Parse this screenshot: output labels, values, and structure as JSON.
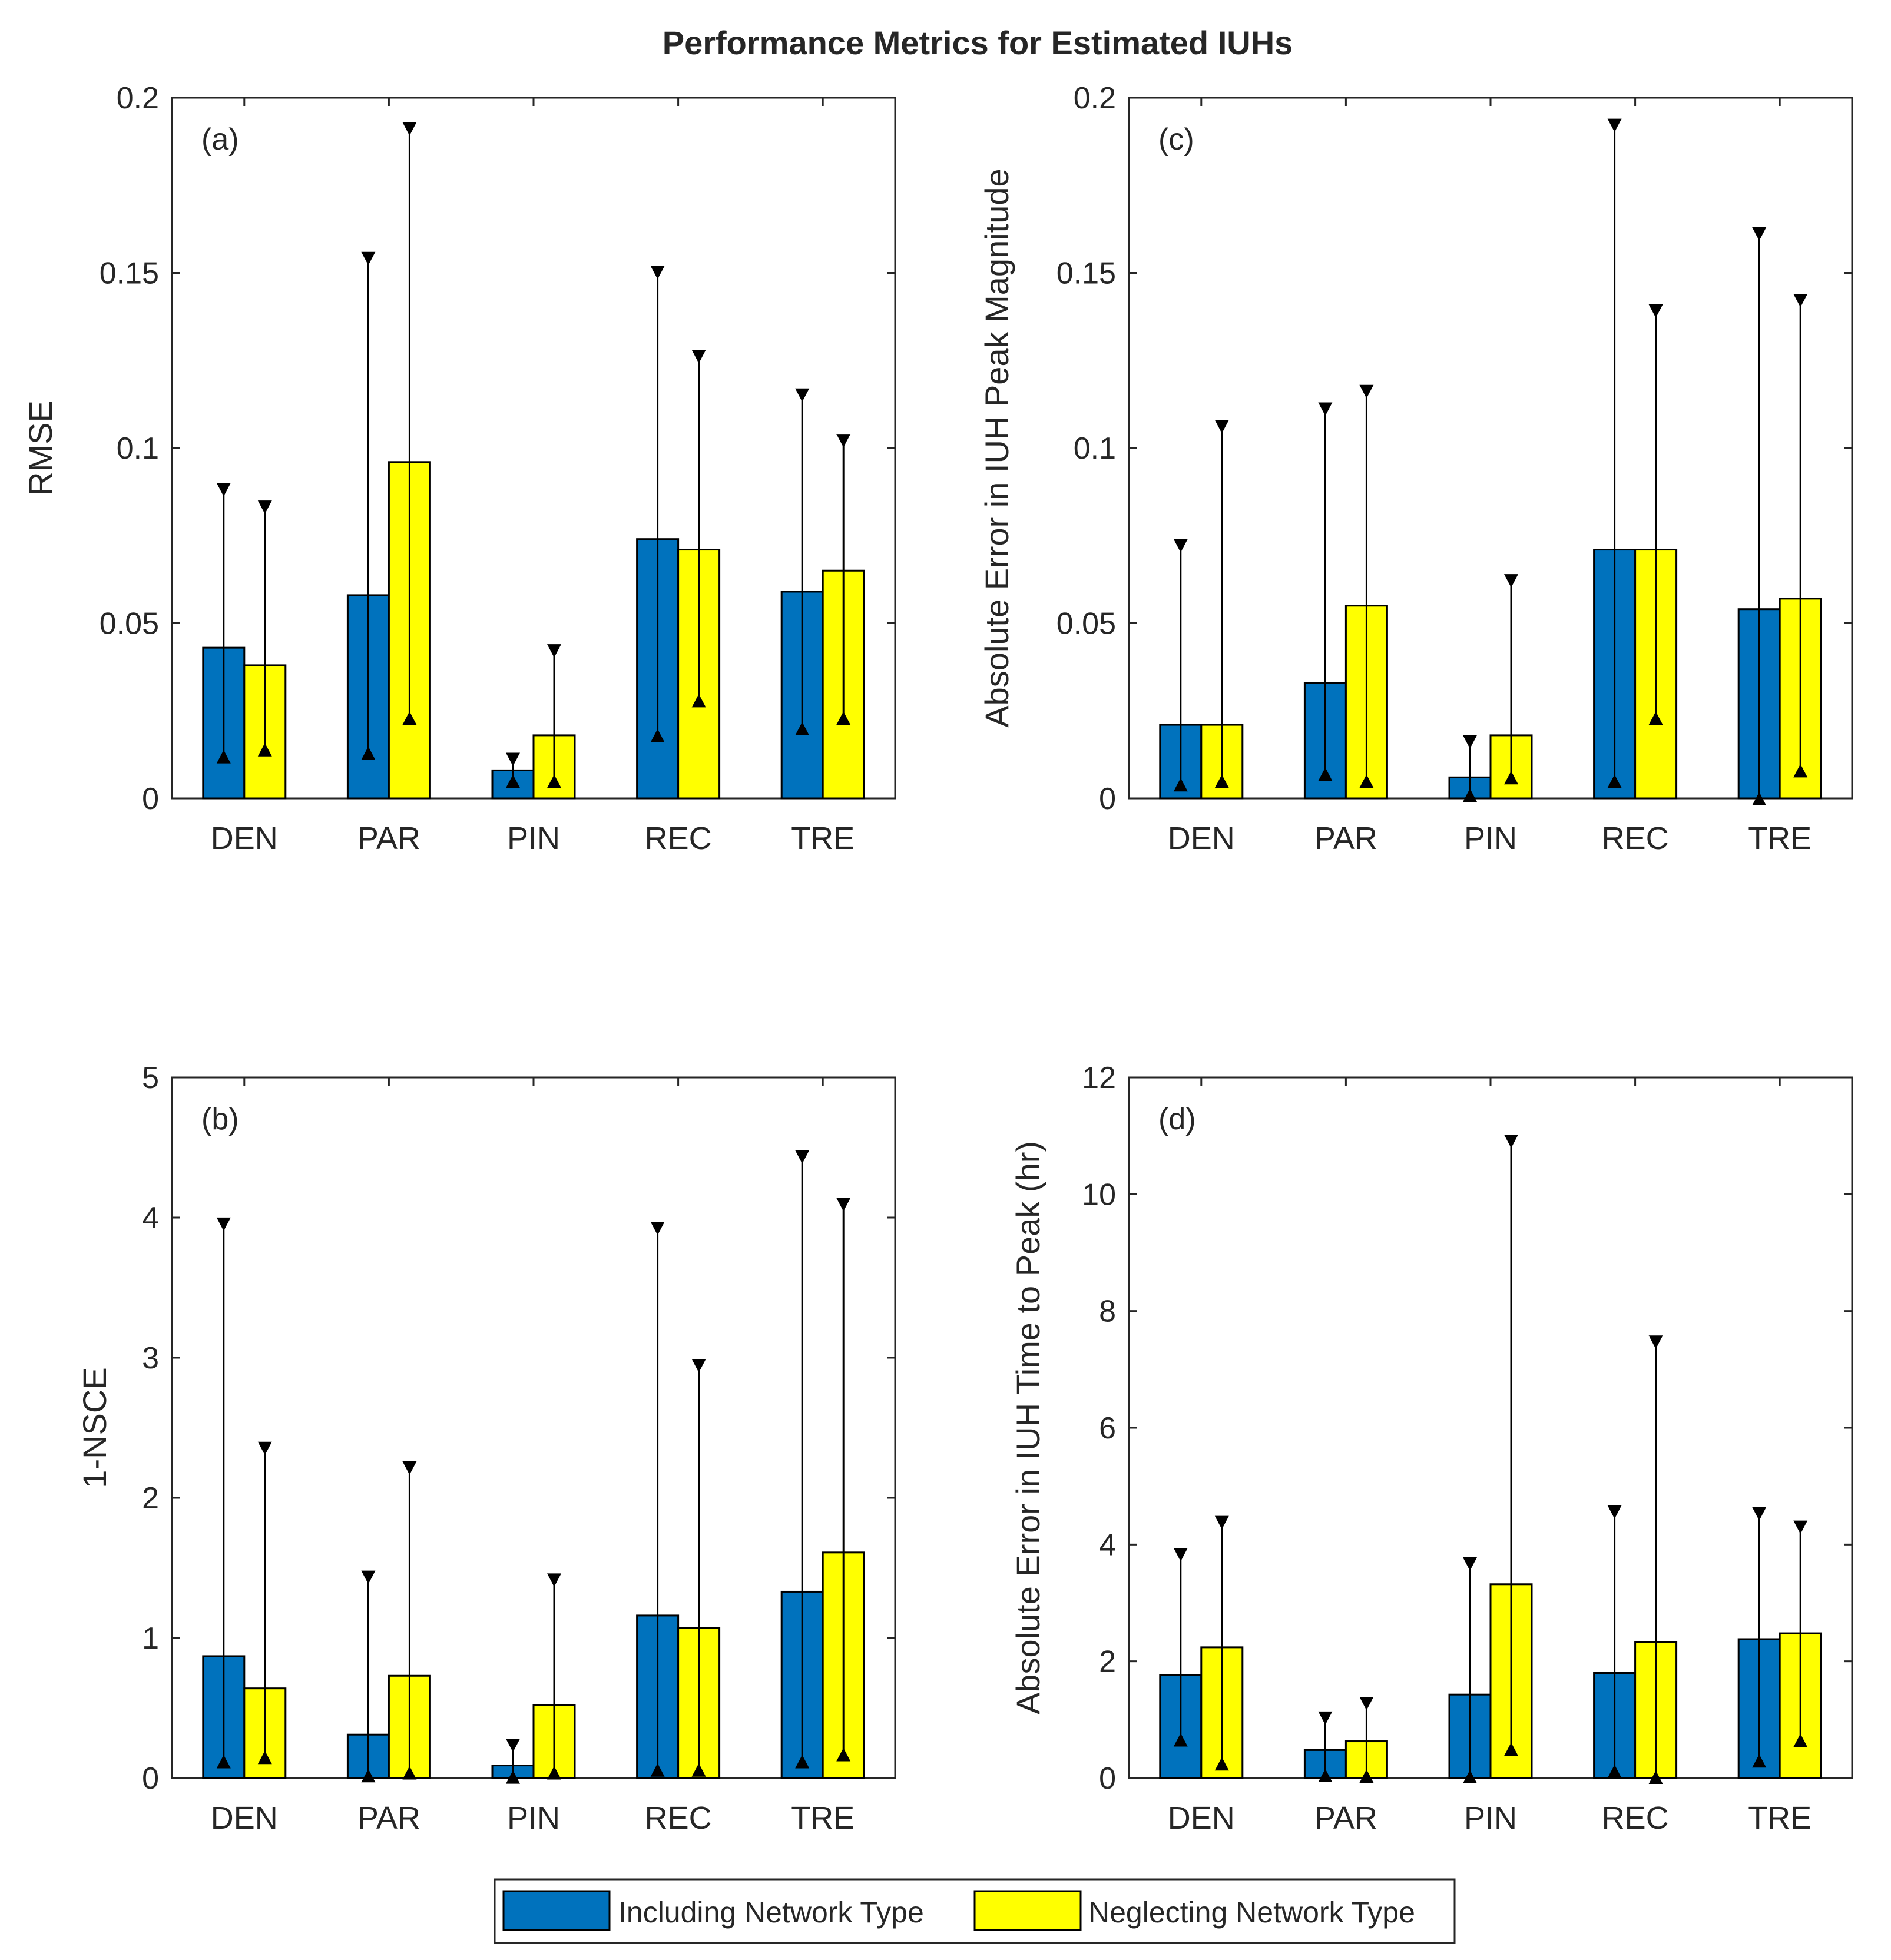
{
  "figure_title": "Performance Metrics for Estimated IUHs",
  "legend": {
    "items": [
      {
        "label": "Including Network Type",
        "color": "#0072BD"
      },
      {
        "label": "Neglecting Network Type",
        "color": "#FFFF00"
      }
    ]
  },
  "chart_data": [
    {
      "id": "a",
      "panel_label": "(a)",
      "type": "bar",
      "ylabel": "RMSE",
      "xlabel": "",
      "ylim": [
        0,
        0.2
      ],
      "yticks": [
        0,
        0.05,
        0.1,
        0.15,
        0.2
      ],
      "ytick_labels": [
        "0",
        "0.05",
        "0.1",
        "0.15",
        "0.2"
      ],
      "categories": [
        "DEN",
        "PAR",
        "PIN",
        "REC",
        "TRE"
      ],
      "series": [
        {
          "name": "Including Network Type",
          "values": [
            0.043,
            0.058,
            0.008,
            0.074,
            0.059
          ],
          "err_low": [
            0.012,
            0.013,
            0.005,
            0.018,
            0.02
          ],
          "err_high": [
            0.088,
            0.154,
            0.011,
            0.15,
            0.115
          ]
        },
        {
          "name": "Neglecting Network Type",
          "values": [
            0.038,
            0.096,
            0.018,
            0.071,
            0.065
          ],
          "err_low": [
            0.014,
            0.023,
            0.005,
            0.028,
            0.023
          ],
          "err_high": [
            0.083,
            0.191,
            0.042,
            0.126,
            0.102
          ]
        }
      ]
    },
    {
      "id": "c",
      "panel_label": "(c)",
      "type": "bar",
      "ylabel": "Absolute Error in IUH Peak Magnitude",
      "xlabel": "",
      "ylim": [
        0,
        0.2
      ],
      "yticks": [
        0,
        0.05,
        0.1,
        0.15,
        0.2
      ],
      "ytick_labels": [
        "0",
        "0.05",
        "0.1",
        "0.15",
        "0.2"
      ],
      "categories": [
        "DEN",
        "PAR",
        "PIN",
        "REC",
        "TRE"
      ],
      "series": [
        {
          "name": "Including Network Type",
          "values": [
            0.021,
            0.033,
            0.006,
            0.071,
            0.054
          ],
          "err_low": [
            0.004,
            0.007,
            0.001,
            0.005,
            0.0
          ],
          "err_high": [
            0.072,
            0.111,
            0.016,
            0.192,
            0.161
          ]
        },
        {
          "name": "Neglecting Network Type",
          "values": [
            0.021,
            0.055,
            0.018,
            0.071,
            0.057
          ],
          "err_low": [
            0.005,
            0.005,
            0.006,
            0.023,
            0.008
          ],
          "err_high": [
            0.106,
            0.116,
            0.062,
            0.139,
            0.142
          ]
        }
      ]
    },
    {
      "id": "b",
      "panel_label": "(b)",
      "type": "bar",
      "ylabel": "1-NSCE",
      "xlabel": "",
      "ylim": [
        0,
        5
      ],
      "yticks": [
        0,
        1,
        2,
        3,
        4,
        5
      ],
      "ytick_labels": [
        "0",
        "1",
        "2",
        "3",
        "4",
        "5"
      ],
      "categories": [
        "DEN",
        "PAR",
        "PIN",
        "REC",
        "TRE"
      ],
      "series": [
        {
          "name": "Including Network Type",
          "values": [
            0.87,
            0.31,
            0.09,
            1.16,
            1.33
          ],
          "err_low": [
            0.12,
            0.02,
            0.01,
            0.06,
            0.12
          ],
          "err_high": [
            3.95,
            1.43,
            0.23,
            3.92,
            4.43
          ]
        },
        {
          "name": "Neglecting Network Type",
          "values": [
            0.64,
            0.73,
            0.52,
            1.07,
            1.61
          ],
          "err_low": [
            0.15,
            0.04,
            0.04,
            0.06,
            0.17
          ],
          "err_high": [
            2.35,
            2.21,
            1.41,
            2.94,
            4.09
          ]
        }
      ]
    },
    {
      "id": "d",
      "panel_label": "(d)",
      "type": "bar",
      "ylabel": "Absolute Error in IUH Time to Peak (hr)",
      "xlabel": "",
      "ylim": [
        0,
        12
      ],
      "yticks": [
        0,
        2,
        4,
        6,
        8,
        10,
        12
      ],
      "ytick_labels": [
        "0",
        "2",
        "4",
        "6",
        "8",
        "10",
        "12"
      ],
      "categories": [
        "DEN",
        "PAR",
        "PIN",
        "REC",
        "TRE"
      ],
      "series": [
        {
          "name": "Including Network Type",
          "values": [
            1.76,
            0.48,
            1.43,
            1.8,
            2.38
          ],
          "err_low": [
            0.66,
            0.05,
            0.03,
            0.12,
            0.3
          ],
          "err_high": [
            3.82,
            1.02,
            3.66,
            4.55,
            4.52
          ]
        },
        {
          "name": "Neglecting Network Type",
          "values": [
            2.24,
            0.63,
            3.32,
            2.33,
            2.48
          ],
          "err_low": [
            0.25,
            0.04,
            0.5,
            0.02,
            0.65
          ],
          "err_high": [
            4.37,
            1.27,
            10.9,
            7.46,
            4.29
          ]
        }
      ]
    }
  ]
}
